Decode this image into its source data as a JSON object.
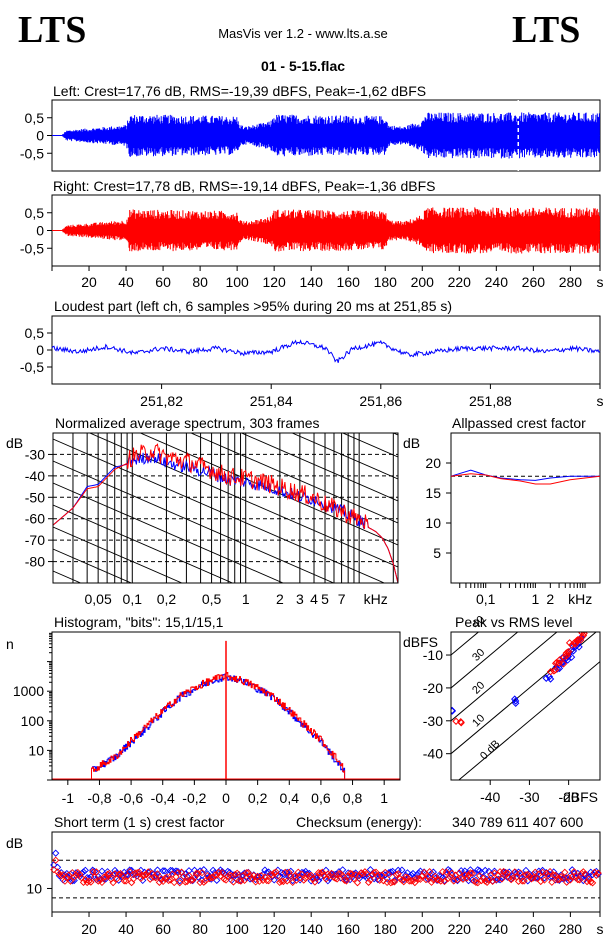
{
  "header": {
    "logo_left": "LTS",
    "logo_right": "LTS",
    "app": "MasVis ver 1.2 - www.lts.a.se",
    "file": "01 - 5-15.flac"
  },
  "colors": {
    "left": "#0000ff",
    "right": "#ff0000",
    "black": "#000000"
  },
  "chart_data": [
    {
      "id": "left-waveform",
      "type": "area",
      "title": "Left: Crest=17,76 dB, RMS=-19,39 dBFS, Peak=-1,62 dBFS",
      "ylim": [
        -1,
        1
      ],
      "yticks": [
        "0,5",
        "0",
        "-0,5"
      ],
      "yticks_v": [
        0.5,
        0,
        -0.5
      ],
      "xlim": [
        0,
        296
      ],
      "marker_x": 251.85,
      "envelope": {
        "x": [
          0,
          5,
          8,
          40,
          42,
          100,
          101,
          104,
          118,
          120,
          180,
          182,
          190,
          200,
          202,
          296
        ],
        "y": [
          0,
          0,
          0.15,
          0.3,
          0.6,
          0.55,
          0.35,
          0.25,
          0.4,
          0.6,
          0.55,
          0.3,
          0.25,
          0.45,
          0.65,
          0.65
        ]
      }
    },
    {
      "id": "right-waveform",
      "type": "area",
      "title": "Right: Crest=17,78 dB, RMS=-19,14 dBFS, Peak=-1,36 dBFS",
      "ylim": [
        -1,
        1
      ],
      "yticks": [
        "0,5",
        "0",
        "-0,5"
      ],
      "yticks_v": [
        0.5,
        0,
        -0.5
      ],
      "xlim": [
        0,
        296
      ],
      "xticks": [
        "20",
        "40",
        "60",
        "80",
        "100",
        "120",
        "140",
        "160",
        "180",
        "200",
        "220",
        "240",
        "260",
        "280",
        "s"
      ],
      "xticks_v": [
        20,
        40,
        60,
        80,
        100,
        120,
        140,
        160,
        180,
        200,
        220,
        240,
        260,
        280,
        296
      ],
      "envelope": {
        "x": [
          0,
          5,
          8,
          40,
          42,
          100,
          101,
          104,
          118,
          120,
          180,
          182,
          190,
          200,
          202,
          296
        ],
        "y": [
          0,
          0,
          0.15,
          0.3,
          0.6,
          0.55,
          0.35,
          0.25,
          0.4,
          0.6,
          0.55,
          0.3,
          0.25,
          0.45,
          0.65,
          0.65
        ]
      }
    },
    {
      "id": "loudest-part",
      "type": "line",
      "title": "Loudest part (left  ch, 6 samples >95% during 20 ms at 251,85 s)",
      "ylim": [
        -1,
        1
      ],
      "yticks": [
        "0,5",
        "0",
        "-0,5"
      ],
      "yticks_v": [
        0.5,
        0,
        -0.5
      ],
      "xlim": [
        251.8,
        251.9
      ],
      "xticks": [
        "251,82",
        "251,84",
        "251,86",
        "251,88",
        "s"
      ],
      "xticks_v": [
        251.82,
        251.84,
        251.86,
        251.88,
        251.9
      ],
      "x": [
        251.8,
        251.805,
        251.81,
        251.815,
        251.82,
        251.825,
        251.83,
        251.835,
        251.84,
        251.845,
        251.85,
        251.852,
        251.855,
        251.86,
        251.865,
        251.87,
        251.875,
        251.88,
        251.885,
        251.89,
        251.895,
        251.9
      ],
      "y": [
        0.05,
        -0.05,
        0.1,
        -0.1,
        0.05,
        -0.05,
        0.05,
        -0.1,
        -0.05,
        0.25,
        0.05,
        -0.35,
        0.05,
        0.2,
        -0.15,
        -0.05,
        0.05,
        0.05,
        0.05,
        -0.05,
        0.05,
        -0.05
      ]
    },
    {
      "id": "avg-spectrum",
      "type": "line",
      "title": "Normalized average spectrum, 303 frames",
      "ylabel": "dB",
      "ylim": [
        -90,
        -20
      ],
      "yticks": [
        "-30",
        "-40",
        "-50",
        "-60",
        "-70",
        "-80"
      ],
      "yticks_v": [
        -30,
        -40,
        -50,
        -60,
        -70,
        -80
      ],
      "xscale": "log",
      "xlim": [
        0.02,
        22
      ],
      "xticks": [
        "0,05",
        "0,1",
        "0,2",
        "0,5",
        "1",
        "2",
        "3",
        "4",
        "5",
        "7",
        "kHz"
      ],
      "xticks_v": [
        0.05,
        0.1,
        0.2,
        0.5,
        1,
        2,
        3,
        4,
        5,
        7,
        14
      ],
      "x": [
        0.02,
        0.03,
        0.04,
        0.05,
        0.07,
        0.1,
        0.15,
        0.2,
        0.3,
        0.5,
        0.7,
        1,
        1.5,
        2,
        3,
        4,
        5,
        6,
        7,
        8,
        10,
        12,
        14,
        16,
        18,
        20,
        22
      ],
      "series": [
        {
          "name": "left",
          "values": [
            -63,
            -55,
            -45,
            -44,
            -36,
            -34,
            -32,
            -35,
            -37,
            -40,
            -43,
            -44,
            -46,
            -48,
            -51,
            -52,
            -54,
            -56,
            -58,
            -59,
            -62,
            -64,
            -66,
            -69,
            -74,
            -81,
            -90
          ]
        },
        {
          "name": "right",
          "values": [
            -63,
            -55,
            -46,
            -45,
            -37,
            -33,
            -30,
            -33,
            -35,
            -39,
            -42,
            -43,
            -45,
            -47,
            -50,
            -52,
            -55,
            -57,
            -58,
            -60,
            -62,
            -64,
            -66,
            -69,
            -74,
            -81,
            -90
          ]
        }
      ]
    },
    {
      "id": "allpassed-crest",
      "type": "line",
      "title": "Allpassed crest factor",
      "ylabel": "dB",
      "ylim": [
        0,
        25
      ],
      "yticks": [
        "20",
        "15",
        "10",
        "5"
      ],
      "yticks_v": [
        20,
        15,
        10,
        5
      ],
      "xscale": "log",
      "xlim": [
        0.02,
        20
      ],
      "xticks": [
        "0,1",
        "1",
        "2",
        "kHz"
      ],
      "xticks_v": [
        0.1,
        1,
        2,
        8
      ],
      "reference": 17.8,
      "x": [
        0.02,
        0.05,
        0.1,
        0.2,
        0.5,
        1,
        2,
        5,
        20
      ],
      "series": [
        {
          "name": "left",
          "values": [
            17.8,
            18.8,
            18.0,
            17.5,
            17.2,
            17.1,
            17.5,
            17.8,
            17.8
          ]
        },
        {
          "name": "right",
          "values": [
            17.8,
            18.2,
            18.0,
            17.4,
            17.0,
            16.5,
            16.5,
            17.2,
            17.8
          ]
        }
      ]
    },
    {
      "id": "histogram",
      "type": "line",
      "title": "Histogram, \"bits\": 15,1/15,1",
      "ylabel": "n",
      "yscale": "log",
      "ylim": [
        1,
        100000
      ],
      "yticks": [
        "1000",
        "100",
        "10"
      ],
      "yticks_v": [
        1000,
        100,
        10
      ],
      "xlim": [
        -1.1,
        1.1
      ],
      "xticks": [
        "-1",
        "-0,8",
        "-0,6",
        "-0,4",
        "-0,2",
        "0",
        "0,2",
        "0,4",
        "0,6",
        "0,8",
        "1"
      ],
      "xticks_v": [
        -1,
        -0.8,
        -0.6,
        -0.4,
        -0.2,
        0,
        0.2,
        0.4,
        0.6,
        0.8,
        1
      ],
      "x": [
        -0.85,
        -0.8,
        -0.7,
        -0.6,
        -0.5,
        -0.4,
        -0.3,
        -0.2,
        -0.1,
        -0.05,
        0,
        0.05,
        0.1,
        0.2,
        0.3,
        0.4,
        0.5,
        0.6,
        0.7,
        0.75
      ],
      "series": [
        {
          "name": "left",
          "values": [
            2,
            3,
            6,
            20,
            60,
            200,
            600,
            1200,
            2200,
            2700,
            3200,
            2700,
            2200,
            1200,
            600,
            200,
            60,
            20,
            4,
            2
          ]
        },
        {
          "name": "right",
          "values": [
            2,
            3,
            6,
            22,
            70,
            220,
            650,
            1300,
            2300,
            2800,
            3300,
            2800,
            2300,
            1300,
            650,
            220,
            70,
            22,
            5,
            2
          ]
        }
      ],
      "spike_x": 0,
      "spike_y": 50000
    },
    {
      "id": "peak-vs-rms",
      "type": "scatter",
      "title": "Peak vs RMS level",
      "ylabel": "dBFS",
      "xlabel": "dBFS",
      "xlim": [
        -50,
        -12
      ],
      "ylim": [
        -48,
        -3
      ],
      "xticks": [
        "-40",
        "-30",
        "-20"
      ],
      "xticks_v": [
        -40,
        -30,
        -20
      ],
      "yticks": [
        "-10",
        "-20",
        "-30",
        "-40"
      ],
      "yticks_v": [
        -10,
        -20,
        -30,
        -40
      ],
      "crest_lines": [
        {
          "db": 40,
          "label": "40"
        },
        {
          "db": 30,
          "label": "30"
        },
        {
          "db": 20,
          "label": "20"
        },
        {
          "db": 10,
          "label": "10"
        },
        {
          "db": 0,
          "label": "0 dB"
        }
      ],
      "series": [
        {
          "name": "left",
          "points": [
            [
              -50,
              -27
            ],
            [
              -34,
              -24
            ],
            [
              -25,
              -17
            ],
            [
              -23,
              -14
            ],
            [
              -22,
              -12
            ],
            [
              -21,
              -11
            ],
            [
              -20,
              -10
            ],
            [
              -19,
              -8
            ],
            [
              -18,
              -7
            ],
            [
              -17,
              -5
            ]
          ]
        },
        {
          "name": "right",
          "points": [
            [
              -48,
              -30
            ],
            [
              -24,
              -15
            ],
            [
              -23,
              -13
            ],
            [
              -22,
              -12
            ],
            [
              -21,
              -10
            ],
            [
              -20,
              -9
            ],
            [
              -19,
              -7
            ],
            [
              -18,
              -6
            ],
            [
              -17,
              -5
            ],
            [
              -16,
              -4
            ]
          ]
        }
      ]
    },
    {
      "id": "short-term-crest",
      "type": "scatter",
      "title": "Short term (1 s) crest factor",
      "ylabel": "dB",
      "ylim": [
        5,
        22
      ],
      "yticks": [
        "10"
      ],
      "yticks_v": [
        10
      ],
      "xlim": [
        0,
        296
      ],
      "xticks": [
        "20",
        "40",
        "60",
        "80",
        "100",
        "120",
        "140",
        "160",
        "180",
        "200",
        "220",
        "240",
        "260",
        "280",
        "s"
      ],
      "xticks_v": [
        20,
        40,
        60,
        80,
        100,
        120,
        140,
        160,
        180,
        200,
        220,
        240,
        260,
        280,
        296
      ],
      "ref_lines": [
        8,
        16
      ],
      "series": [
        {
          "name": "left",
          "base": 12.8,
          "start": [
            15,
            17.5,
            14.5
          ]
        },
        {
          "name": "right",
          "base": 12.4,
          "start": [
            14,
            16.0,
            13.5
          ]
        }
      ]
    }
  ],
  "checksum": {
    "label": "Checksum (energy):",
    "value": "340 789 611 407 600"
  }
}
